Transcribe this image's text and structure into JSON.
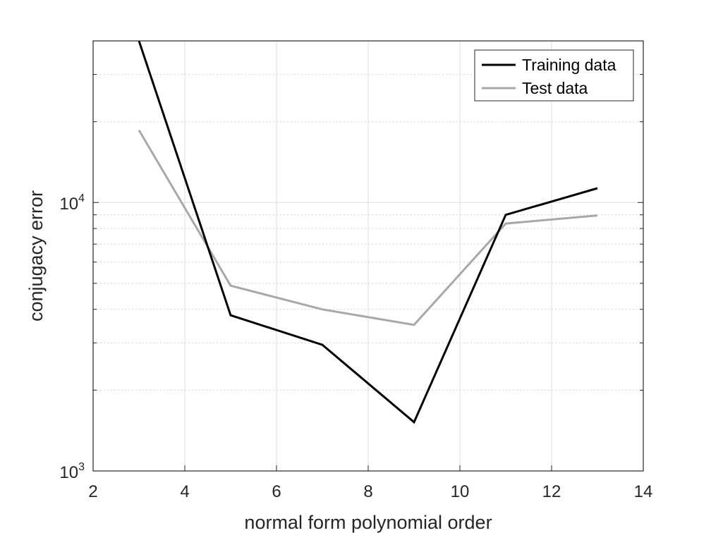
{
  "chart_data": {
    "type": "line",
    "xlabel": "normal form polynomial order",
    "ylabel": "conjugacy error",
    "xlim": [
      2,
      14
    ],
    "ylim": [
      1000,
      40000
    ],
    "yscale": "log",
    "grid": true,
    "x_ticks": [
      "2",
      "4",
      "6",
      "8",
      "10",
      "12",
      "14"
    ],
    "y_ticks": [
      {
        "base": "10",
        "exp": "3"
      },
      {
        "base": "10",
        "exp": "4"
      }
    ],
    "legend": {
      "position": "top-right",
      "entries": [
        "Training data",
        "Test data"
      ]
    },
    "series": [
      {
        "name": "Training data",
        "color": "#000000",
        "x": [
          3,
          5,
          7,
          9,
          11,
          13
        ],
        "y": [
          40000,
          3800,
          2950,
          1520,
          9000,
          11300
        ]
      },
      {
        "name": "Test data",
        "color": "#a8a8a8",
        "x": [
          3,
          5,
          7,
          9,
          11,
          13
        ],
        "y": [
          18600,
          4900,
          4000,
          3500,
          8350,
          8950
        ]
      }
    ]
  }
}
